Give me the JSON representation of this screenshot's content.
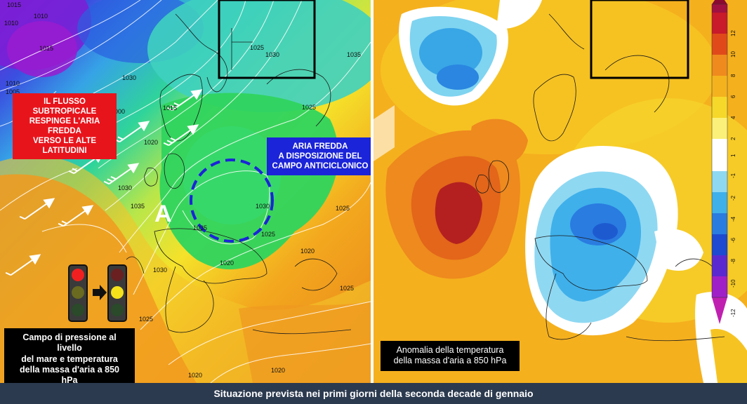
{
  "left_panel": {
    "red_label": [
      "IL FLUSSO SUBTROPICALE",
      "RESPINGE L'ARIA FREDDA",
      "VERSO LE ALTE LATITUDINI"
    ],
    "blue_label": [
      "ARIA FREDDA",
      "A DISPOSIZIONE DEL",
      "CAMPO ANTICICLONICO"
    ],
    "anticyclone_letter": "A",
    "caption": [
      "Campo di pressione al livello",
      "del mare e temperatura",
      "della massa d'aria a 850 hPa"
    ],
    "isobar_labels": [
      "1010",
      "1015",
      "1010",
      "1005",
      "1015",
      "1010",
      "1025",
      "1030",
      "1035",
      "1000",
      "1015",
      "1020",
      "1030",
      "1025",
      "1035",
      "1030",
      "1025",
      "1035",
      "1030",
      "1025",
      "1020",
      "1020",
      "1025",
      "1025",
      "1020",
      "1030",
      "1020"
    ]
  },
  "right_panel": {
    "caption": [
      "Anomalia della temperatura",
      "della massa d'aria a 850 hPa"
    ],
    "colorbar_ticks": [
      "12",
      "10",
      "8",
      "6",
      "4",
      "2",
      "1",
      "-1",
      "-2",
      "-4",
      "-6",
      "-8",
      "-10",
      "-12"
    ]
  },
  "footer": {
    "text": "Situazione prevista nei primi giorni della seconda decade di gennaio"
  },
  "colors": {
    "deep_purple": "#5b22c8",
    "blue": "#2f6fd8",
    "cyan": "#3ed1c8",
    "green": "#2fd46a",
    "yellow": "#f5e22a",
    "orange": "#f39a1e",
    "dark_orange": "#e06a12",
    "dark_red": "#b31e1e",
    "label_red": "#e8141c",
    "label_blue": "#1b24d8"
  }
}
